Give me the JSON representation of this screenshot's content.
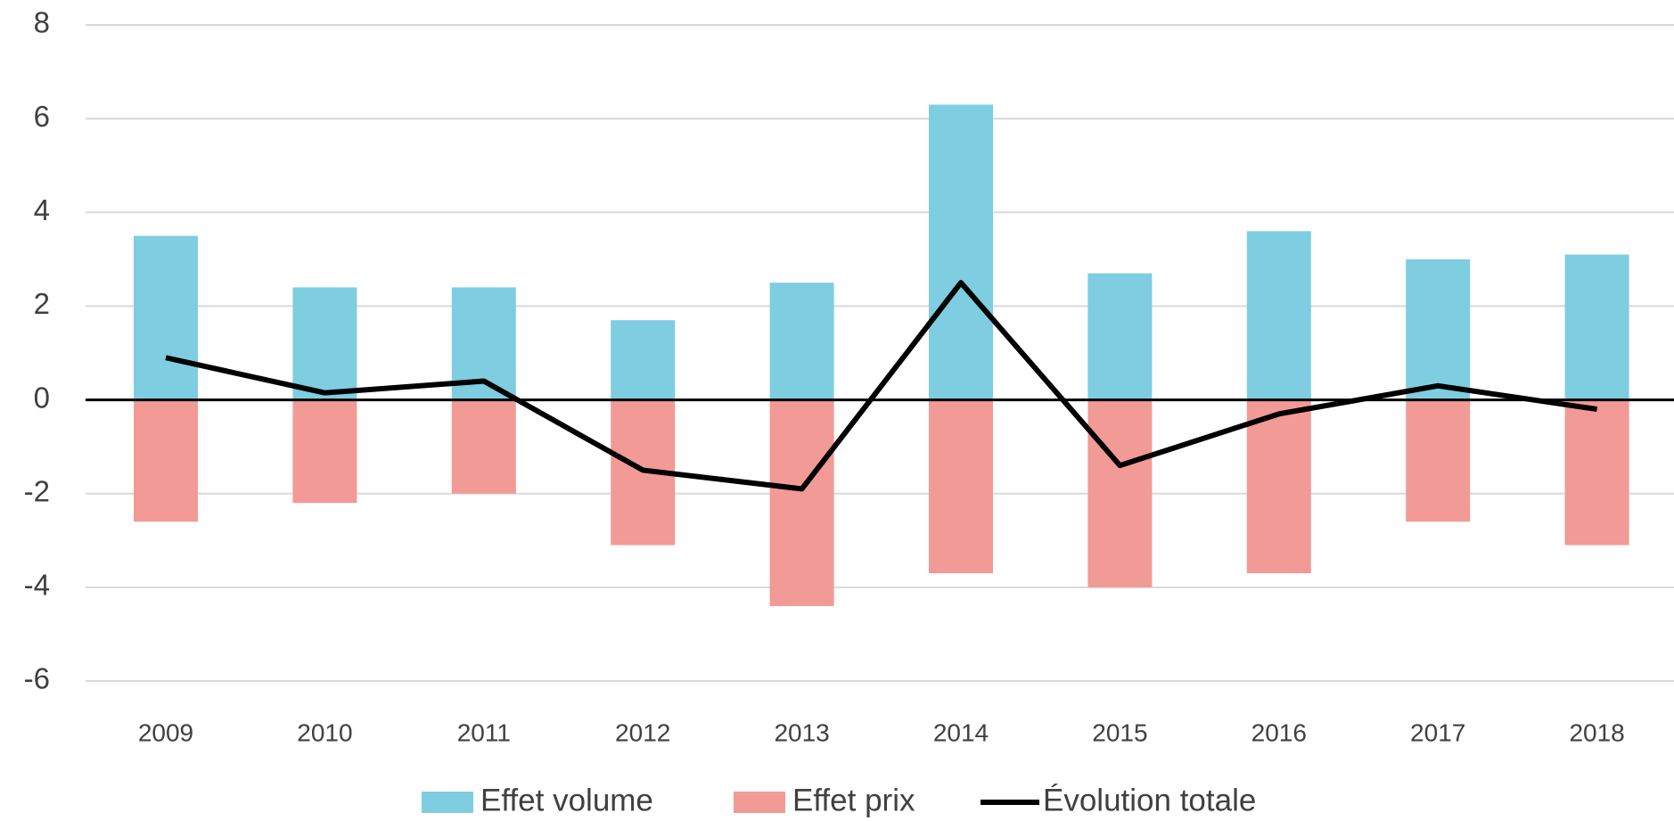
{
  "chart_data": {
    "type": "bar",
    "stacked": true,
    "categories": [
      "2009",
      "2010",
      "2011",
      "2012",
      "2013",
      "2014",
      "2015",
      "2016",
      "2017",
      "2018"
    ],
    "series": [
      {
        "name": "Effet volume",
        "color": "#7fcde0",
        "values": [
          3.5,
          2.4,
          2.4,
          1.7,
          2.5,
          6.3,
          2.7,
          3.6,
          3.0,
          3.1
        ]
      },
      {
        "name": "Effet prix",
        "color": "#f29a96",
        "values": [
          -2.6,
          -2.2,
          -2.0,
          -3.1,
          -4.4,
          -3.7,
          -4.0,
          -3.7,
          -2.6,
          -3.1
        ]
      },
      {
        "name": "Évolution totale",
        "type": "line",
        "color": "#000000",
        "values": [
          0.9,
          0.15,
          0.4,
          -1.5,
          -1.9,
          2.5,
          -1.4,
          -0.3,
          0.3,
          -0.2
        ]
      }
    ],
    "ylim": [
      -6,
      8
    ],
    "yticks": [
      -6,
      -4,
      -2,
      0,
      2,
      4,
      6,
      8
    ],
    "grid": true,
    "legend": "bottom"
  }
}
